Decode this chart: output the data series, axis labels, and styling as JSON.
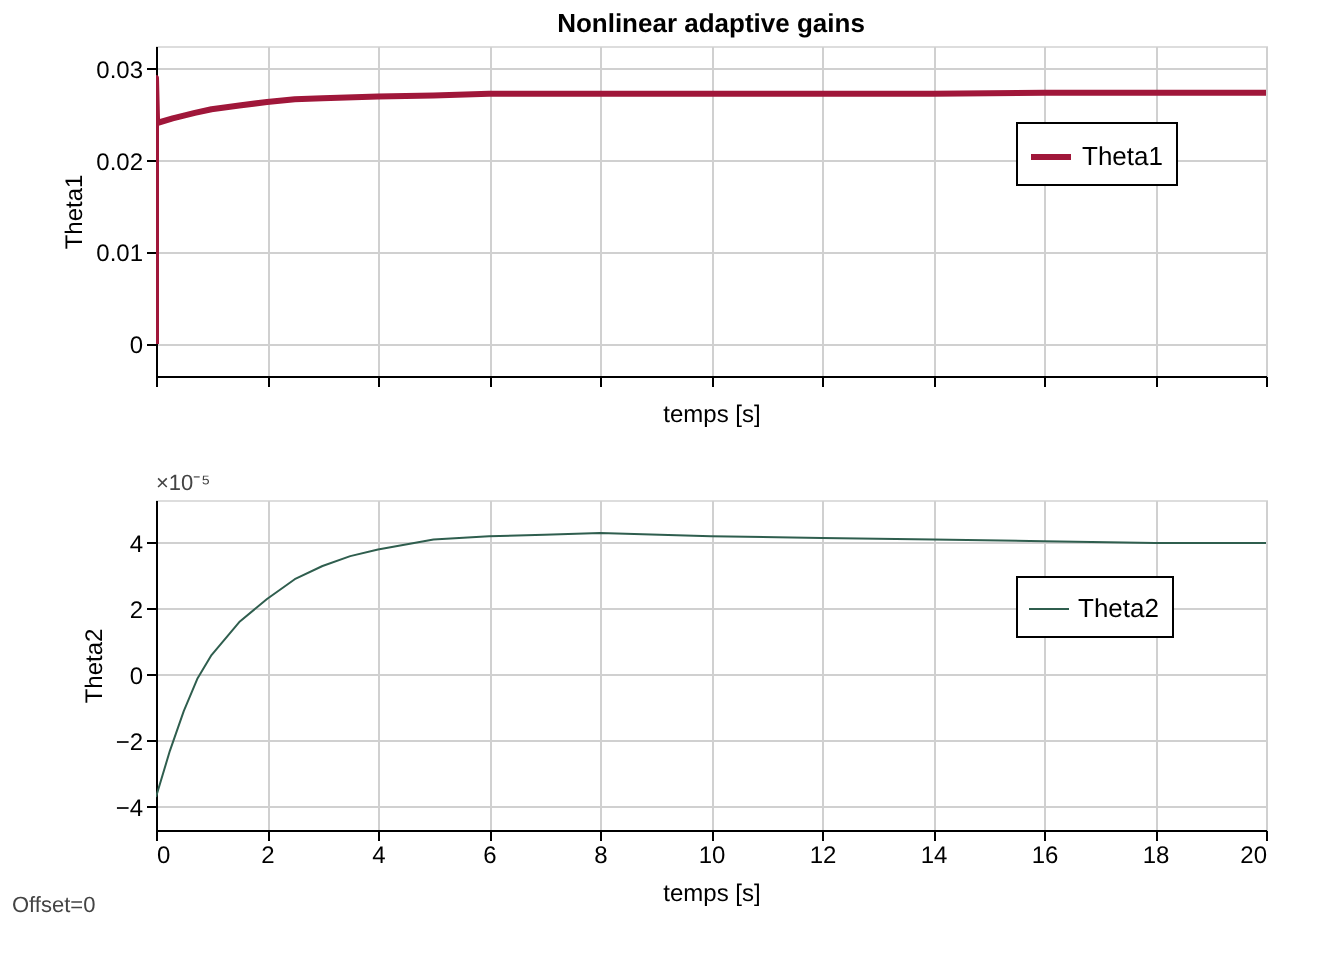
{
  "chart_data": [
    {
      "type": "line",
      "title": "Nonlinear adaptive gains",
      "xlabel": "temps [s]",
      "ylabel": "Theta1",
      "x": [
        0,
        0,
        0.02,
        0.3,
        0.7,
        1,
        1.5,
        2,
        2.5,
        3,
        4,
        5,
        6,
        8,
        10,
        12,
        14,
        16,
        18,
        20
      ],
      "series": [
        {
          "name": "Theta1",
          "color": "#a0173a",
          "values": [
            0,
            0.029,
            0.0241,
            0.0246,
            0.0252,
            0.0256,
            0.026,
            0.0264,
            0.0267,
            0.0268,
            0.027,
            0.0271,
            0.0273,
            0.0273,
            0.0273,
            0.0273,
            0.0273,
            0.0274,
            0.0274,
            0.0274
          ]
        }
      ],
      "xlim": [
        0,
        20
      ],
      "xticks": [
        0,
        2,
        4,
        6,
        8,
        10,
        12,
        14,
        16,
        18,
        20
      ],
      "ylim": [
        -0.0035,
        0.0325
      ],
      "yticks": [
        0,
        0.01,
        0.02,
        0.03
      ],
      "grid": true,
      "legend": "top right",
      "tick_labels": "y"
    },
    {
      "type": "line",
      "xlabel": "temps [s]",
      "ylabel": "Theta2",
      "x": [
        0,
        0.25,
        0.5,
        0.75,
        1,
        1.5,
        2,
        2.5,
        3,
        3.5,
        4,
        5,
        6,
        7,
        8,
        10,
        12,
        14,
        16,
        18,
        20
      ],
      "series": [
        {
          "name": "Theta2",
          "color": "#2f5e4e",
          "values": [
            -3.7,
            -2.3,
            -1.1,
            -0.1,
            0.6,
            1.6,
            2.3,
            2.9,
            3.3,
            3.6,
            3.8,
            4.1,
            4.2,
            4.25,
            4.3,
            4.2,
            4.15,
            4.1,
            4.05,
            4.0,
            4.0
          ]
        }
      ],
      "xlim": [
        0,
        20
      ],
      "xticks": [
        0,
        2,
        4,
        6,
        8,
        10,
        12,
        14,
        16,
        18,
        20
      ],
      "ylim": [
        -4.7,
        5.3
      ],
      "yticks": [
        -4,
        -2,
        0,
        2,
        4
      ],
      "grid": true,
      "legend": "top right",
      "annotations": [
        "×10⁻⁵",
        "Offset=0"
      ]
    }
  ]
}
